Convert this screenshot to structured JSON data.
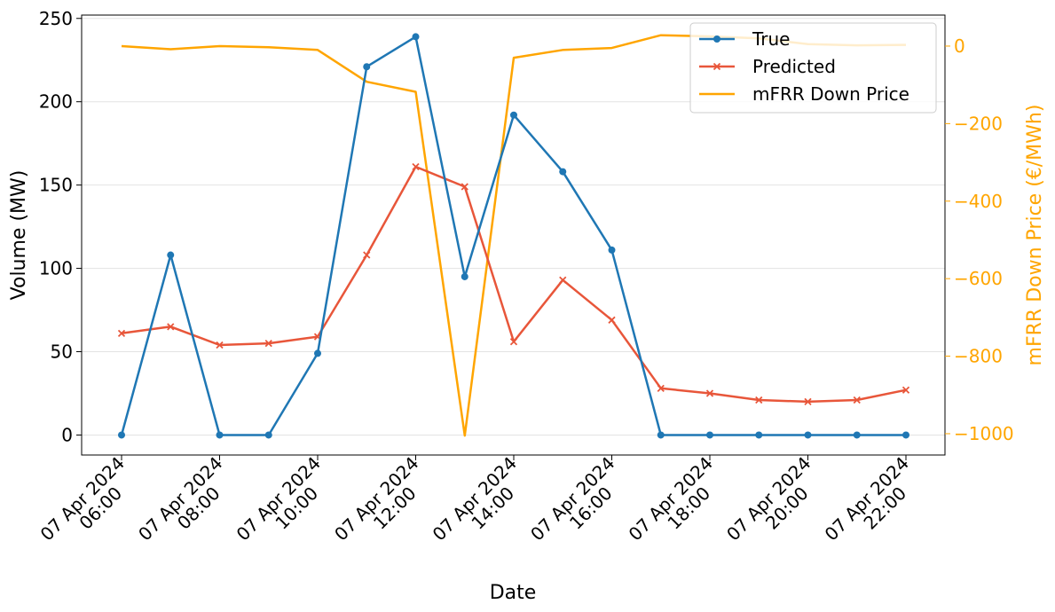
{
  "chart_data": {
    "type": "line",
    "xlabel": "Date",
    "ylabel": "Volume (MW)",
    "y2label": "mFRR Down Price (€/MWh)",
    "ylim": [
      -12,
      252
    ],
    "y2lim": [
      -1055,
      80
    ],
    "yticks": [
      0,
      50,
      100,
      150,
      200,
      250
    ],
    "y2ticks": [
      0,
      -200,
      -400,
      -600,
      -800,
      -1000
    ],
    "y2tick_labels": [
      "0",
      "−200",
      "−400",
      "−600",
      "−800",
      "−1000"
    ],
    "grid": "horizontal",
    "legend_position": "top-right",
    "x": [
      "06:00",
      "07:00",
      "08:00",
      "09:00",
      "10:00",
      "11:00",
      "12:00",
      "13:00",
      "14:00",
      "15:00",
      "16:00",
      "17:00",
      "18:00",
      "19:00",
      "20:00",
      "21:00",
      "22:00"
    ],
    "xticks": [
      {
        "line1": "07 Apr 2024",
        "line2": "06:00"
      },
      {
        "line1": "07 Apr 2024",
        "line2": "08:00"
      },
      {
        "line1": "07 Apr 2024",
        "line2": "10:00"
      },
      {
        "line1": "07 Apr 2024",
        "line2": "12:00"
      },
      {
        "line1": "07 Apr 2024",
        "line2": "14:00"
      },
      {
        "line1": "07 Apr 2024",
        "line2": "16:00"
      },
      {
        "line1": "07 Apr 2024",
        "line2": "18:00"
      },
      {
        "line1": "07 Apr 2024",
        "line2": "20:00"
      },
      {
        "line1": "07 Apr 2024",
        "line2": "22:00"
      }
    ],
    "series": [
      {
        "name": "True",
        "axis": "left",
        "color": "#1f77b4",
        "marker": "circle",
        "values": [
          0,
          108,
          0,
          0,
          49,
          221,
          239,
          95,
          192,
          158,
          111,
          0,
          0,
          0,
          0,
          0,
          0
        ]
      },
      {
        "name": "Predicted",
        "axis": "left",
        "color": "#e8563a",
        "marker": "x",
        "values": [
          61,
          65,
          54,
          55,
          59,
          108,
          161,
          149,
          56,
          93,
          69,
          28,
          25,
          21,
          20,
          21,
          27
        ]
      },
      {
        "name": "mFRR Down Price",
        "axis": "right",
        "color": "#ffa500",
        "marker": "none",
        "values": [
          0,
          -8,
          0,
          -3,
          -10,
          -92,
          -118,
          -1005,
          -30,
          -10,
          -5,
          28,
          25,
          20,
          5,
          2,
          3
        ]
      }
    ]
  }
}
